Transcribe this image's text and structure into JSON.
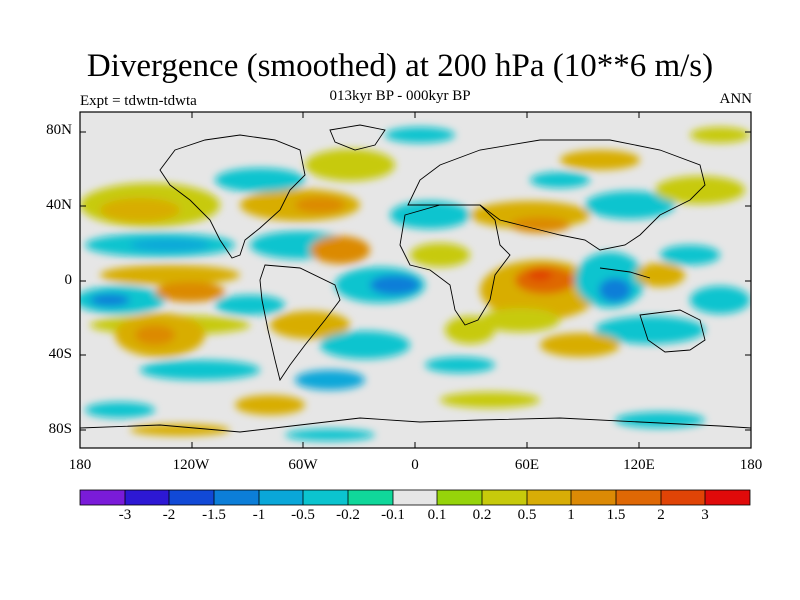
{
  "title": "Divergence (smoothed) at 200 hPa (10**6 m/s)",
  "subtitle_center": "013kyr BP - 000kyr BP",
  "subtitle_left": "Expt = tdwtn-tdwta",
  "subtitle_right": "ANN",
  "lat_labels": [
    "80N",
    "40N",
    "0",
    "40S",
    "80S"
  ],
  "lon_labels": [
    "180",
    "120W",
    "60W",
    "0",
    "60E",
    "120E",
    "180"
  ],
  "colors": {
    "background": "#e6e6e6",
    "bins": [
      "#7a1bd9",
      "#2d18d4",
      "#1149d6",
      "#0c7ed8",
      "#0aa7d9",
      "#0bc4cf",
      "#10d79a",
      "#e6e6e6",
      "#96d40a",
      "#c7ca0b",
      "#d8ad06",
      "#dc8a05",
      "#df6805",
      "#e04406",
      "#e00a0a"
    ]
  },
  "colorbar_labels": [
    "-3",
    "-2",
    "-1.5",
    "-1",
    "-0.5",
    "-0.2",
    "-0.1",
    "0.1",
    "0.2",
    "0.5",
    "1",
    "1.5",
    "2",
    "3"
  ]
}
